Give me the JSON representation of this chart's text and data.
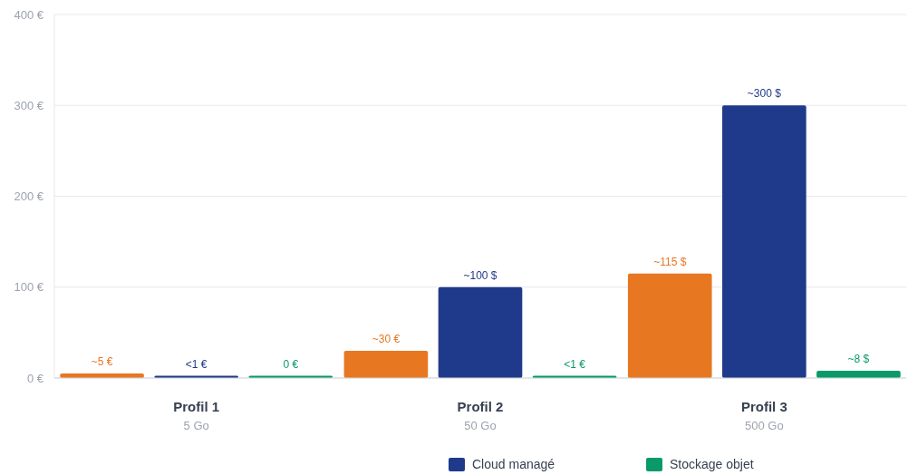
{
  "chart_data": {
    "type": "bar",
    "categories": [
      "Profil 1\n5 Go",
      "Profil 2\n50 Go",
      "Profil 3\n500 Go"
    ],
    "series": [
      {
        "color": "#e87722",
        "values": [
          5,
          30,
          115
        ],
        "value_labels": [
          "~5 €",
          "~30 €",
          "~115 $"
        ]
      },
      {
        "name": "Cloud managé",
        "color": "#1f3a8a",
        "values": [
          1,
          100,
          300
        ],
        "value_labels": [
          "<1 €",
          "~100 $",
          "~300 $"
        ]
      },
      {
        "name": "Stockage objet",
        "color": "#0a9a6a",
        "values": [
          0,
          1,
          8
        ],
        "value_labels": [
          "0 €",
          "<1 €",
          "~8 $"
        ]
      }
    ],
    "ylim": [
      0,
      400
    ],
    "yticks": [
      {
        "value": 0,
        "label": "0 €"
      },
      {
        "value": 100,
        "label": "100 €"
      },
      {
        "value": 200,
        "label": "200 €"
      },
      {
        "value": 300,
        "label": "300 €"
      },
      {
        "value": 400,
        "label": "400 €"
      }
    ],
    "grid": "y",
    "legend": "bottom"
  }
}
